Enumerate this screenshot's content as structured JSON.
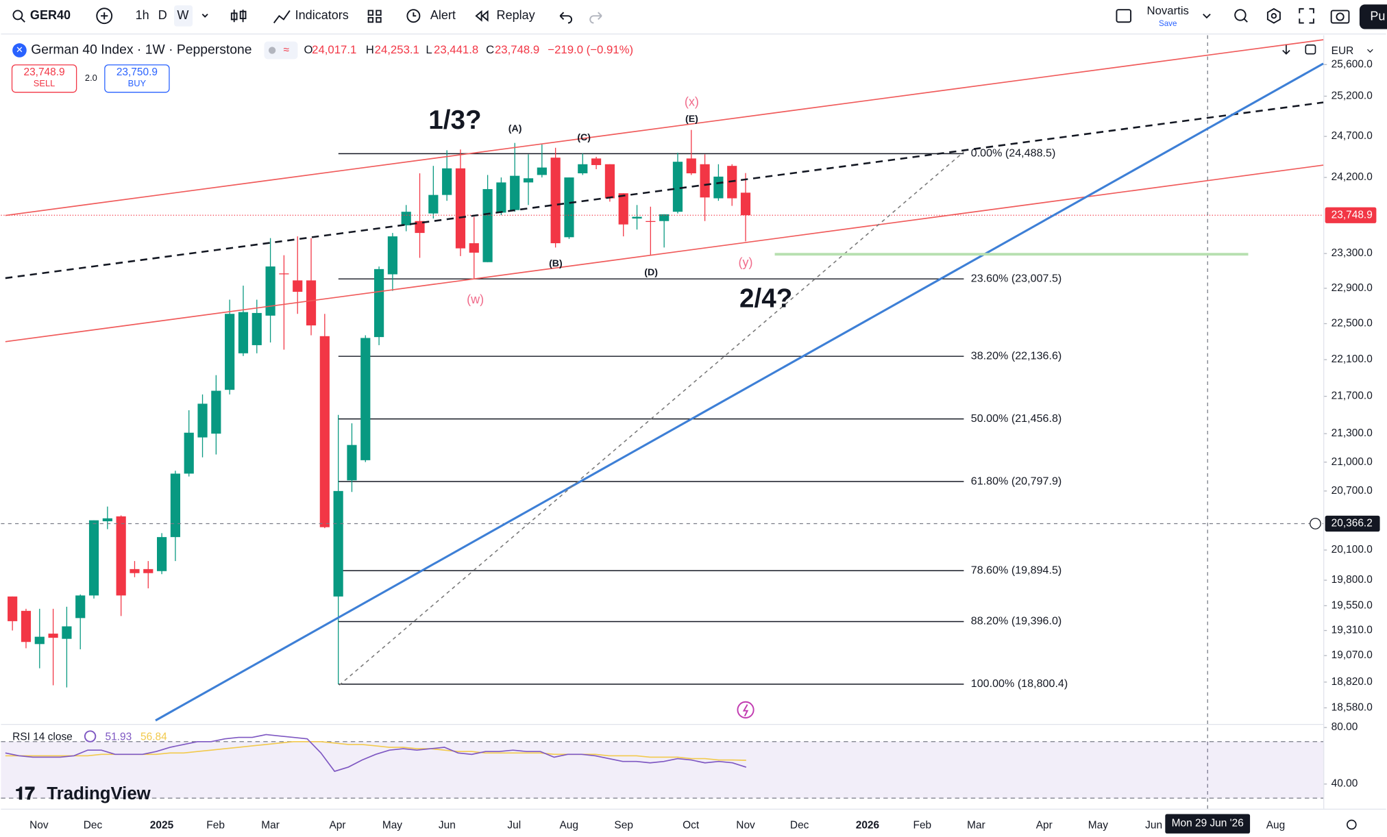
{
  "toolbar": {
    "symbol": "GER40",
    "intervals": [
      "1h",
      "D",
      "W"
    ],
    "indicators": "Indicators",
    "alert": "Alert",
    "replay": "Replay",
    "layout_name": "Novartis",
    "layout_status": "Save",
    "publish": "Pu"
  },
  "legend": {
    "title": "German 40 Index · 1W · Pepperstone",
    "o_key": "O",
    "o": "24,017.1",
    "h_key": "H",
    "h": "24,253.1",
    "l_key": "L",
    "l": "23,441.8",
    "c_key": "C",
    "c": "23,748.9",
    "change": "−219.0 (−0.91%)",
    "sell_price": "23,748.9",
    "sell": "SELL",
    "spread": "2.0",
    "buy_price": "23,750.9",
    "buy": "BUY"
  },
  "currency": "EUR",
  "branding": "TradingView",
  "chart_data": [
    {
      "type": "candlestick",
      "up_color": "#089981",
      "down_color": "#f23645",
      "log_scale": true,
      "open": [
        19640,
        19500,
        19180,
        19280,
        19230,
        19430,
        19650,
        20390,
        20440,
        19910,
        19910,
        19890,
        20230,
        20880,
        21260,
        21300,
        21770,
        22170,
        22260,
        22590,
        23070,
        22990,
        22990,
        22360,
        19640,
        20810,
        21020,
        22350,
        23060,
        23630,
        23680,
        23770,
        23990,
        24310,
        23420,
        23200,
        23780,
        23810,
        24140,
        24230,
        24440,
        23490,
        24250,
        24430,
        24360,
        24010,
        23710,
        23680,
        23680,
        23790,
        24430,
        24360,
        23950,
        24340,
        24017.1
      ],
      "high": [
        19640,
        19520,
        19520,
        19520,
        19540,
        19660,
        20400,
        20540,
        20450,
        19990,
        19990,
        20270,
        20910,
        21550,
        21720,
        21930,
        22770,
        22930,
        22770,
        23480,
        23280,
        23500,
        23480,
        22610,
        21500,
        21410,
        22370,
        23150,
        23540,
        23870,
        24250,
        24340,
        24530,
        24540,
        23730,
        24230,
        24200,
        24620,
        24480,
        24600,
        24560,
        24200,
        24490,
        24450,
        24360,
        24010,
        23870,
        23850,
        23760,
        24500,
        24780,
        24480,
        24360,
        24360,
        24253.1
      ],
      "low": [
        19310,
        19140,
        18950,
        18790,
        18770,
        19130,
        19620,
        20310,
        19450,
        19830,
        19720,
        19860,
        19990,
        20850,
        21050,
        21080,
        21720,
        22140,
        22170,
        22290,
        22210,
        22610,
        22370,
        20320,
        18800,
        20690,
        21000,
        22260,
        22870,
        23560,
        23250,
        23710,
        23920,
        23270,
        23010,
        23200,
        23750,
        23790,
        23870,
        24200,
        23370,
        23470,
        24230,
        24300,
        23910,
        23500,
        23580,
        23280,
        23370,
        23770,
        24230,
        23680,
        23920,
        23860,
        23441.8
      ],
      "close": [
        19400,
        19200,
        19250,
        19240,
        19350,
        19650,
        20400,
        20420,
        19650,
        19870,
        19870,
        20230,
        20880,
        21310,
        21620,
        21760,
        22610,
        22630,
        22620,
        23150,
        23060,
        22860,
        22480,
        20330,
        20700,
        21180,
        22340,
        23120,
        23500,
        23790,
        23540,
        23990,
        24310,
        23360,
        23310,
        24060,
        24140,
        24220,
        24190,
        24320,
        23420,
        24200,
        24360,
        24350,
        23950,
        23640,
        23730,
        23670,
        23760,
        24390,
        24250,
        23960,
        24210,
        23950,
        23748.9
      ],
      "ylim": [
        18415,
        25976
      ],
      "yticks": [
        {
          "value": 25600,
          "label": "25,600.0"
        },
        {
          "value": 25200,
          "label": "25,200.0"
        },
        {
          "value": 24700,
          "label": "24,700.0"
        },
        {
          "value": 24200,
          "label": "24,200.0"
        },
        {
          "value": 23300,
          "label": "23,300.0"
        },
        {
          "value": 22900,
          "label": "22,900.0"
        },
        {
          "value": 22500,
          "label": "22,500.0"
        },
        {
          "value": 22100,
          "label": "22,100.0"
        },
        {
          "value": 21700,
          "label": "21,700.0"
        },
        {
          "value": 21300,
          "label": "21,300.0"
        },
        {
          "value": 21000,
          "label": "21,000.0"
        },
        {
          "value": 20700,
          "label": "20,700.0"
        },
        {
          "value": 20100,
          "label": "20,100.0"
        },
        {
          "value": 19800,
          "label": "19,800.0"
        },
        {
          "value": 19550,
          "label": "19,550.0"
        },
        {
          "value": 19310,
          "label": "19,310.0"
        },
        {
          "value": 19070,
          "label": "19,070.0"
        },
        {
          "value": 18820,
          "label": "18,820.0"
        },
        {
          "value": 18580,
          "label": "18,580.0"
        }
      ],
      "last_price": {
        "value": 23748.9,
        "label": "23,748.9"
      },
      "crosshair": {
        "value": 20366.2,
        "label": "20,366.2",
        "time": "Mon 29 Jun '26"
      },
      "fib_levels": [
        {
          "value": 24488.5,
          "label": "0.00% (24,488.5)"
        },
        {
          "value": 23007.5,
          "label": "23.60% (23,007.5)"
        },
        {
          "value": 22136.6,
          "label": "38.20% (22,136.6)"
        },
        {
          "value": 21456.8,
          "label": "50.00% (21,456.8)"
        },
        {
          "value": 20797.9,
          "label": "61.80% (20,797.9)"
        },
        {
          "value": 19894.5,
          "label": "78.60% (19,894.5)"
        },
        {
          "value": 19396,
          "label": "88.20% (19,396.0)"
        },
        {
          "value": 18800.4,
          "label": "100.00% (18,800.4)"
        }
      ],
      "annotations": [
        "1/3?",
        "2/4?",
        "(A)",
        "(B)",
        "(C)",
        "(D)",
        "(E)",
        "(x)",
        "(w)",
        "(y)"
      ],
      "xlabels": [
        "Nov",
        "Dec",
        "2025",
        "Feb",
        "Mar",
        "Apr",
        "May",
        "Jun",
        "Jul",
        "Aug",
        "Sep",
        "Oct",
        "Nov",
        "Dec",
        "2026",
        "Feb",
        "Mar",
        "Apr",
        "May",
        "Jun",
        "Aug"
      ]
    },
    {
      "type": "line",
      "title": "RSI 14 close",
      "ylim": [
        22.5,
        83.75
      ],
      "yticks": [
        {
          "value": 80,
          "label": "80.00"
        },
        {
          "value": 40,
          "label": "40.00"
        }
      ],
      "band": [
        30,
        70
      ],
      "series": [
        {
          "color": "#7e57c2",
          "values": [
            62,
            60,
            59,
            59,
            59,
            60,
            64,
            64,
            61,
            61,
            61,
            63,
            66,
            68,
            70,
            70,
            72,
            73,
            73,
            75,
            74,
            73,
            72,
            62,
            49,
            52,
            57,
            61,
            64,
            65,
            64,
            65,
            66,
            62,
            61,
            63,
            63,
            64,
            63,
            63,
            59,
            61,
            61,
            60,
            58,
            56,
            56,
            55,
            56,
            58,
            57,
            55,
            56,
            55,
            51.93
          ]
        },
        {
          "color": "#f2c94c",
          "values": [
            60,
            60,
            60,
            60,
            60,
            60,
            60,
            61,
            61,
            61,
            61,
            61,
            62,
            62,
            63,
            64,
            65,
            66,
            67,
            68,
            69,
            70,
            70,
            70,
            69,
            68,
            68,
            67,
            66,
            66,
            65,
            65,
            64,
            63,
            63,
            62,
            62,
            62,
            62,
            62,
            61,
            61,
            61,
            61,
            60,
            60,
            60,
            59,
            59,
            59,
            58,
            58,
            57,
            57,
            56.84
          ]
        }
      ]
    }
  ]
}
